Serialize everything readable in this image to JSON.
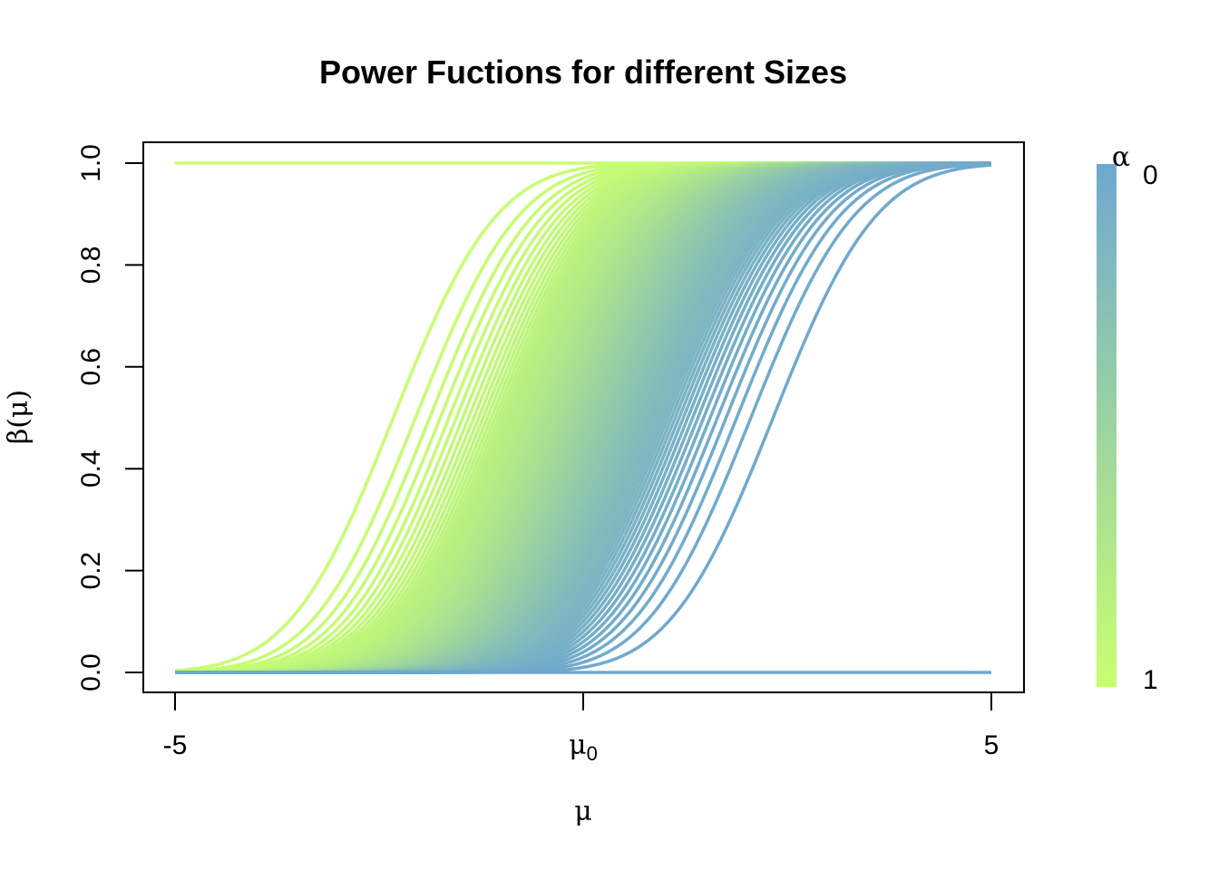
{
  "chart_data": {
    "type": "line",
    "title": "Power Fuctions for different Sizes",
    "xlabel": "μ",
    "ylabel": "β(μ)",
    "xlim": [
      -5,
      5
    ],
    "ylim": [
      0,
      1
    ],
    "x_ticks": [
      {
        "value": -5,
        "label": "-5"
      },
      {
        "value": 0,
        "label": "μ",
        "subscript": "0"
      },
      {
        "value": 5,
        "label": "5"
      }
    ],
    "y_ticks": [
      {
        "value": 0.0,
        "label": "0.0"
      },
      {
        "value": 0.2,
        "label": "0.2"
      },
      {
        "value": 0.4,
        "label": "0.4"
      },
      {
        "value": 0.6,
        "label": "0.6"
      },
      {
        "value": 0.8,
        "label": "0.8"
      },
      {
        "value": 1.0,
        "label": "1.0"
      }
    ],
    "grid": false,
    "series_family": {
      "description_formula": "beta(mu) = Phi(mu - mu0 - z_(1-alpha)), one curve per size alpha",
      "alpha_values_from": 0,
      "alpha_values_to": 1,
      "alpha_count": 101
    },
    "legend": {
      "placement": "right",
      "title": "α",
      "top_label": "0",
      "bottom_label": "1",
      "color_top": "#6FA8CF",
      "color_bottom": "#C8FF70"
    },
    "colors": {
      "alpha_0": "#6FA8CF",
      "alpha_1": "#C8FF70"
    }
  }
}
